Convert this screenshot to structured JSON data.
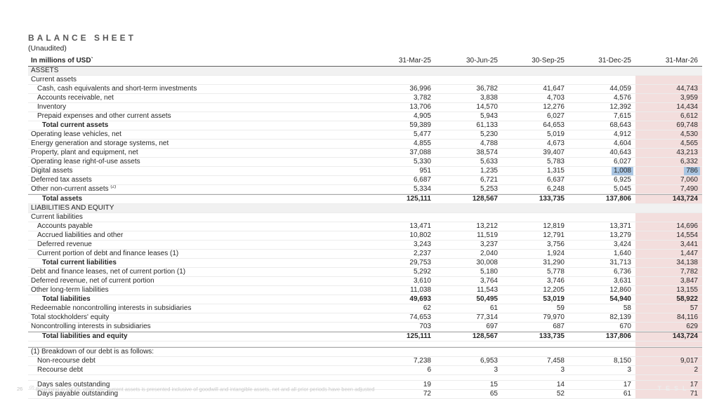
{
  "title": "BALANCE SHEET",
  "subtitle": "(Unaudited)",
  "table": {
    "unit_label": "In millions of USD`",
    "columns": [
      "31-Mar-25",
      "30-Jun-25",
      "30-Sep-25",
      "31-Dec-25",
      "31-Mar-26"
    ],
    "rows": [
      {
        "label": "ASSETS",
        "section": true
      },
      {
        "label": "Current assets",
        "indent": 0
      },
      {
        "label": "Cash, cash equivalents and short-term investments",
        "indent": 1,
        "values": [
          "36,996",
          "36,782",
          "41,647",
          "44,059",
          "44,743"
        ]
      },
      {
        "label": "Accounts receivable, net",
        "indent": 1,
        "values": [
          "3,782",
          "3,838",
          "4,703",
          "4,576",
          "3,959"
        ]
      },
      {
        "label": "Inventory",
        "indent": 1,
        "values": [
          "13,706",
          "14,570",
          "12,276",
          "12,392",
          "14,434"
        ]
      },
      {
        "label": "Prepaid expenses and other current assets",
        "indent": 1,
        "values": [
          "4,905",
          "5,943",
          "6,027",
          "7,615",
          "6,612"
        ]
      },
      {
        "label": "Total current assets",
        "indent": 2,
        "labelBold": true,
        "values": [
          "59,389",
          "61,133",
          "64,653",
          "68,643",
          "69,748"
        ]
      },
      {
        "label": "Operating lease vehicles, net",
        "indent": 0,
        "values": [
          "5,477",
          "5,230",
          "5,019",
          "4,912",
          "4,530"
        ]
      },
      {
        "label": "Energy generation and storage systems, net",
        "indent": 0,
        "values": [
          "4,855",
          "4,788",
          "4,673",
          "4,604",
          "4,565"
        ]
      },
      {
        "label": "Property, plant and equipment, net",
        "indent": 0,
        "values": [
          "37,088",
          "38,574",
          "39,407",
          "40,643",
          "43,213"
        ]
      },
      {
        "label": "Operating lease right-of-use assets",
        "indent": 0,
        "values": [
          "5,330",
          "5,633",
          "5,783",
          "6,027",
          "6,332"
        ]
      },
      {
        "label": "Digital assets",
        "indent": 0,
        "values": [
          "951",
          "1,235",
          "1,315",
          "1,008",
          "786"
        ],
        "cellHighlights": [
          3,
          4
        ]
      },
      {
        "label": "Deferred tax assets",
        "indent": 0,
        "values": [
          "6,687",
          "6,721",
          "6,637",
          "6,925",
          "7,060"
        ]
      },
      {
        "label": "Other non-current assets ",
        "sup": "(2)",
        "indent": 0,
        "values": [
          "5,334",
          "5,253",
          "6,248",
          "5,045",
          "7,490"
        ]
      },
      {
        "label": "Total assets",
        "indent": 2,
        "bold": true,
        "topBorder": true,
        "values": [
          "125,111",
          "128,567",
          "133,735",
          "137,806",
          "143,724"
        ]
      },
      {
        "label": "LIABILITIES AND EQUITY",
        "section": true
      },
      {
        "label": "Current liabilities",
        "indent": 0
      },
      {
        "label": "Accounts payable",
        "indent": 1,
        "values": [
          "13,471",
          "13,212",
          "12,819",
          "13,371",
          "14,696"
        ]
      },
      {
        "label": "Accrued liabilities and other",
        "indent": 1,
        "values": [
          "10,802",
          "11,519",
          "12,791",
          "13,279",
          "14,554"
        ]
      },
      {
        "label": "Deferred revenue",
        "indent": 1,
        "values": [
          "3,243",
          "3,237",
          "3,756",
          "3,424",
          "3,441"
        ]
      },
      {
        "label": "Current portion of debt and finance leases (1)",
        "indent": 1,
        "values": [
          "2,237",
          "2,040",
          "1,924",
          "1,640",
          "1,447"
        ]
      },
      {
        "label": "Total current liabilities",
        "indent": 2,
        "labelBold": true,
        "values": [
          "29,753",
          "30,008",
          "31,290",
          "31,713",
          "34,138"
        ]
      },
      {
        "label": "Debt and finance leases, net of current portion (1)",
        "indent": 0,
        "values": [
          "5,292",
          "5,180",
          "5,778",
          "6,736",
          "7,782"
        ]
      },
      {
        "label": "Deferred revenue, net of current portion",
        "indent": 0,
        "values": [
          "3,610",
          "3,764",
          "3,746",
          "3,631",
          "3,847"
        ]
      },
      {
        "label": "Other long-term liabilities",
        "indent": 0,
        "values": [
          "11,038",
          "11,543",
          "12,205",
          "12,860",
          "13,155"
        ]
      },
      {
        "label": "Total liabilities",
        "indent": 2,
        "bold": true,
        "values": [
          "49,693",
          "50,495",
          "53,019",
          "54,940",
          "58,922"
        ]
      },
      {
        "label": "Redeemable noncontrolling interests in subsidiaries",
        "indent": 0,
        "values": [
          "62",
          "61",
          "59",
          "58",
          "57"
        ]
      },
      {
        "label": "Total stockholders' equity",
        "indent": 0,
        "values": [
          "74,653",
          "77,314",
          "79,970",
          "82,139",
          "84,116"
        ]
      },
      {
        "label": "Noncontrolling interests in subsidiaries",
        "indent": 0,
        "values": [
          "703",
          "697",
          "687",
          "670",
          "629"
        ]
      },
      {
        "label": "Total liabilities and equity",
        "indent": 2,
        "bold": true,
        "topBorder": true,
        "values": [
          "125,111",
          "128,567",
          "133,735",
          "137,806",
          "143,724"
        ]
      },
      {
        "spacer": true
      },
      {
        "label": "(1) Breakdown of our debt is as follows:",
        "indent": 0,
        "topBorder": true
      },
      {
        "label": "Non-recourse debt",
        "indent": 1,
        "values": [
          "7,238",
          "6,953",
          "7,458",
          "8,150",
          "9,017"
        ]
      },
      {
        "label": "Recourse debt",
        "indent": 1,
        "values": [
          "6",
          "3",
          "3",
          "3",
          "2"
        ]
      },
      {
        "spacer": true
      },
      {
        "label": "Days sales outstanding",
        "indent": 1,
        "values": [
          "19",
          "15",
          "14",
          "17",
          "17"
        ]
      },
      {
        "label": "Days payable outstanding",
        "indent": 1,
        "values": [
          "72",
          "65",
          "52",
          "61",
          "71"
        ]
      }
    ]
  },
  "footer": {
    "page_number": "26",
    "footnote_sup": "(2)",
    "footnote_text": "Beginning in Q4'25, other non-current assets is presented inclusive of goodwill and intangible assets, net and all prior periods have been adjusted",
    "brand": "TESLA"
  },
  "colors": {
    "highlight_column": "#f3dedd",
    "highlight_cell": "#a9c5e2",
    "section_row": "#f1f1f1"
  }
}
